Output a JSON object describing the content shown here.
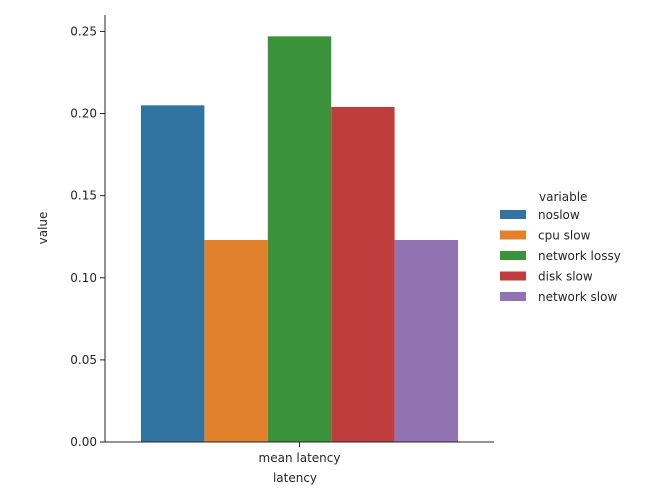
{
  "chart_data": {
    "type": "bar",
    "categories": [
      "mean latency"
    ],
    "series": [
      {
        "name": "noslow",
        "values": [
          0.205
        ],
        "color": "#3274a1"
      },
      {
        "name": "cpu slow",
        "values": [
          0.123
        ],
        "color": "#e1812c"
      },
      {
        "name": "network lossy",
        "values": [
          0.247
        ],
        "color": "#3a923a"
      },
      {
        "name": "disk slow",
        "values": [
          0.204
        ],
        "color": "#c03d3e"
      },
      {
        "name": "network slow",
        "values": [
          0.123
        ],
        "color": "#9372b2"
      }
    ],
    "xlabel": "latency",
    "ylabel": "value",
    "ylim": [
      0,
      0.26
    ],
    "yticks": [
      0.0,
      0.05,
      0.1,
      0.15,
      0.2,
      0.25
    ],
    "ytick_labels": [
      "0.00",
      "0.05",
      "0.10",
      "0.15",
      "0.20",
      "0.25"
    ],
    "grid": false,
    "legend": {
      "title": "variable",
      "placement": "right"
    }
  }
}
